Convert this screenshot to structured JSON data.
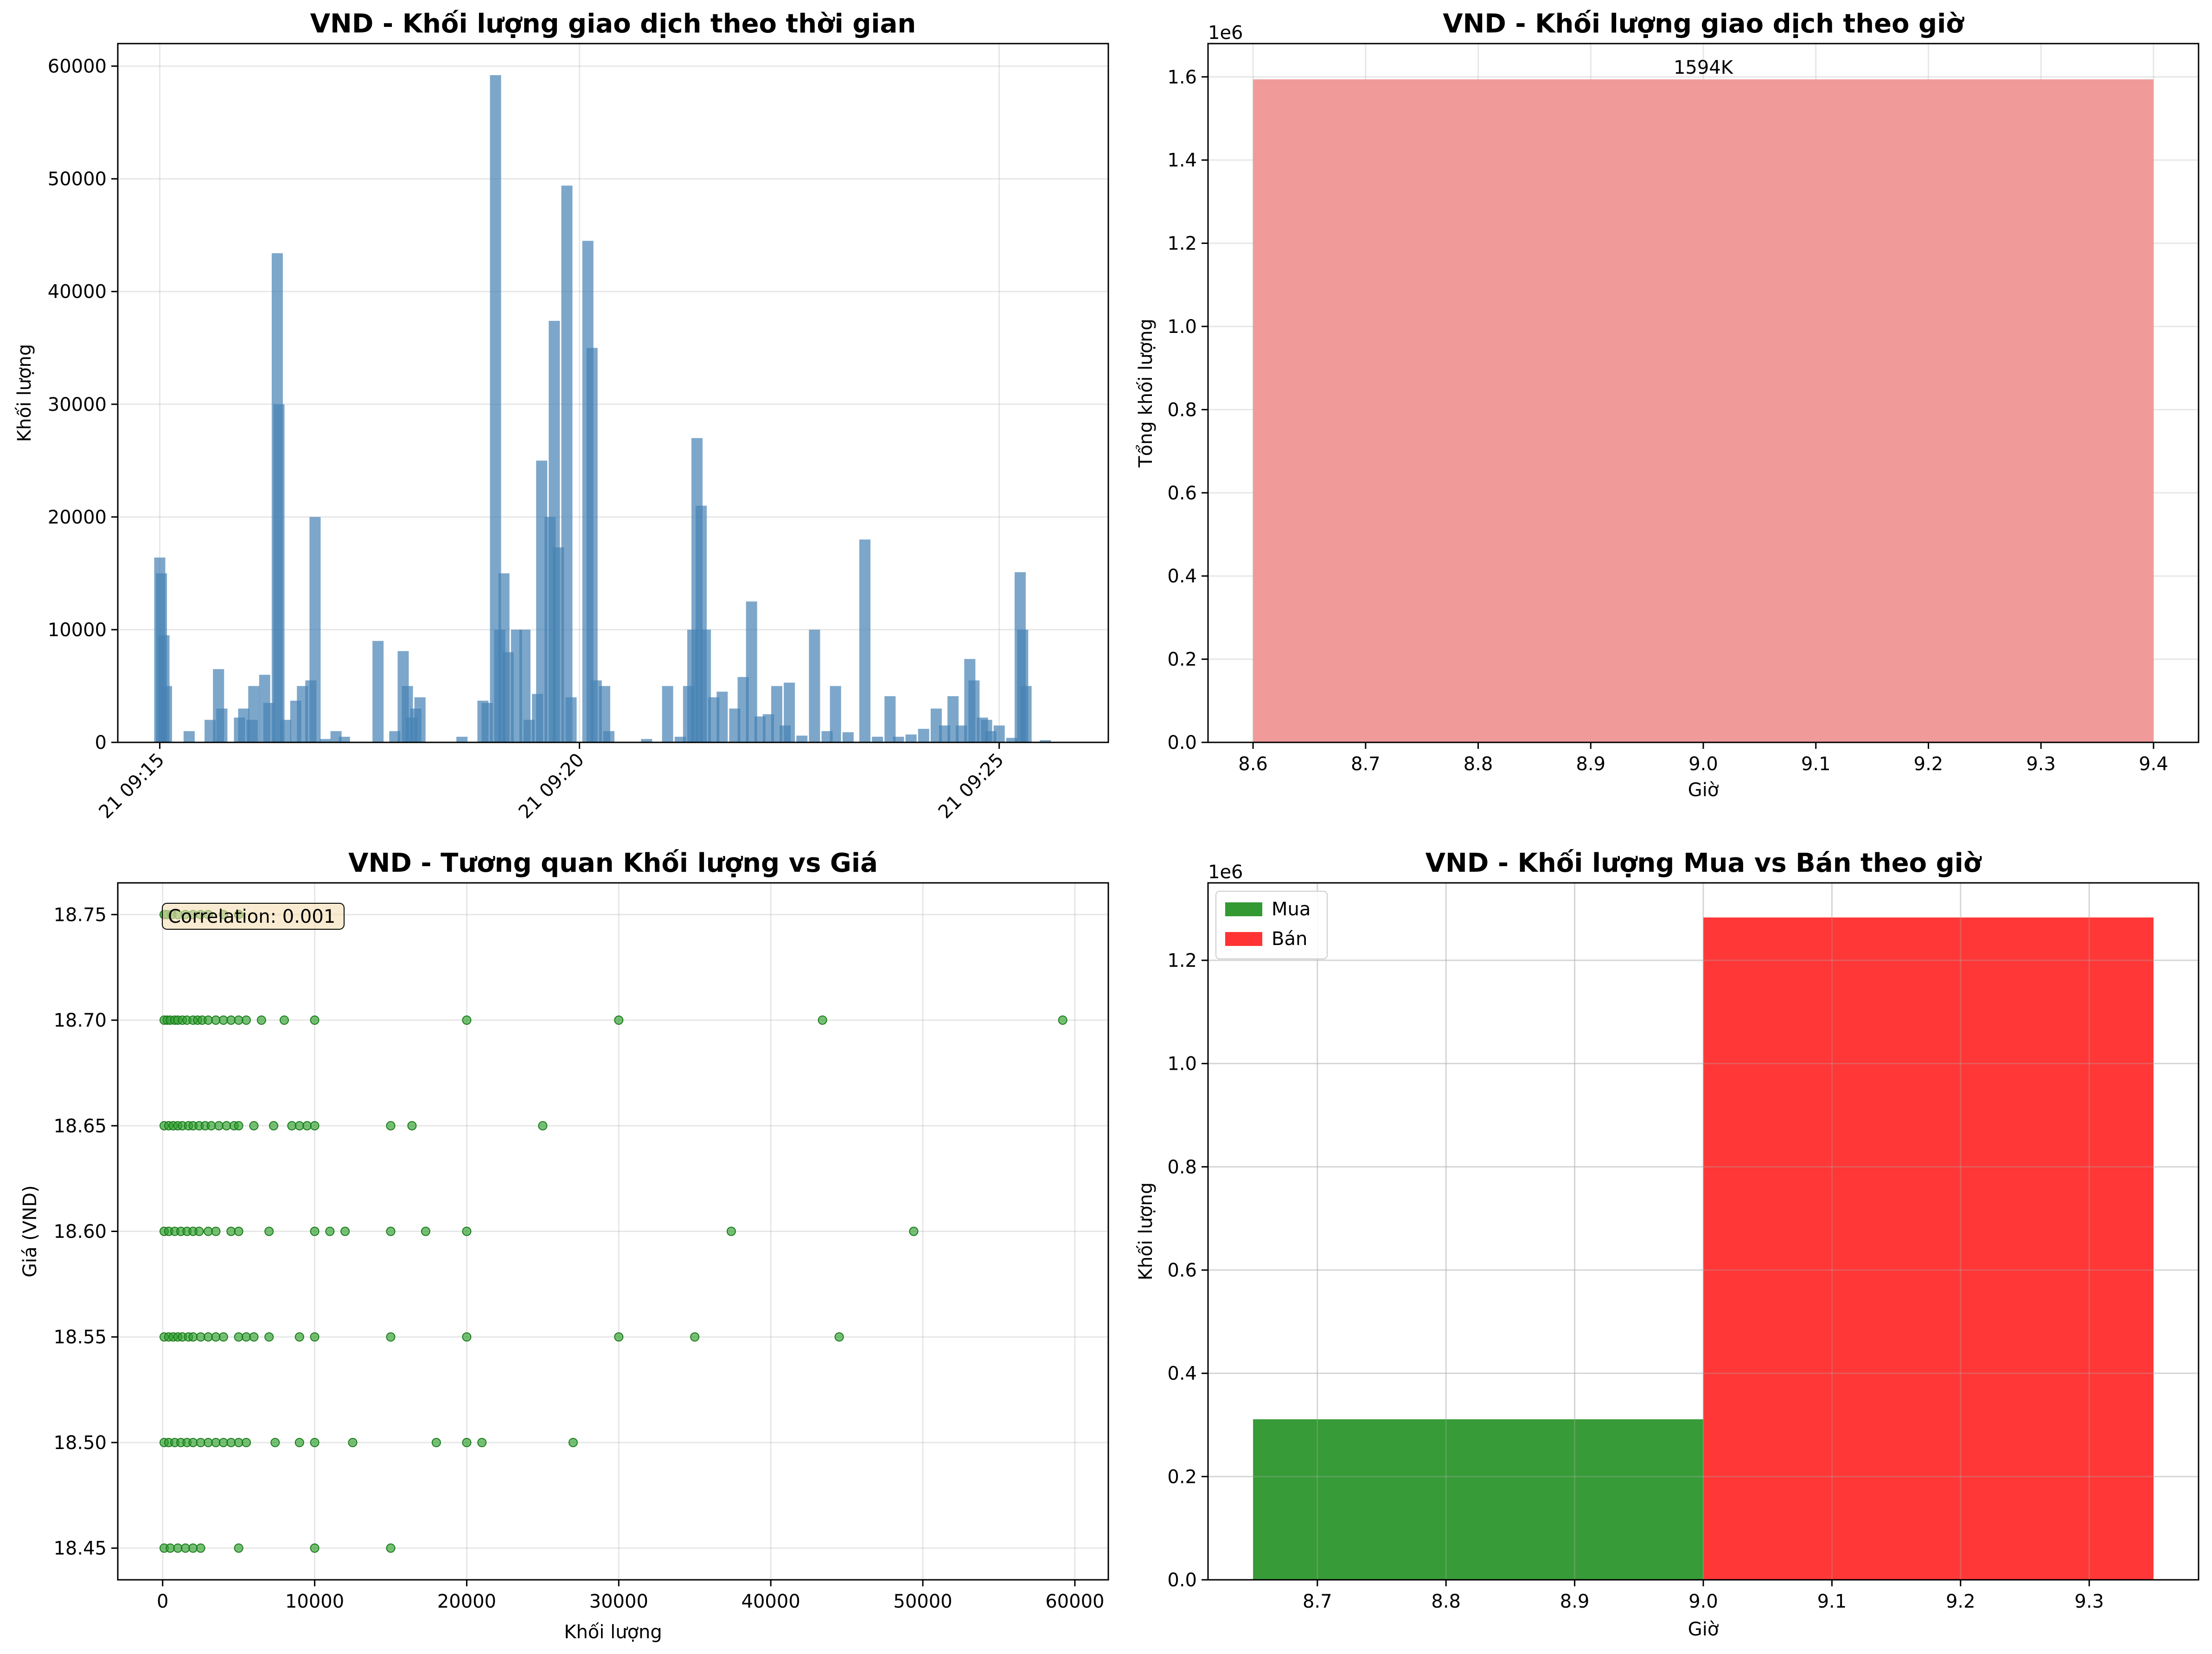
{
  "chart_data": [
    {
      "type": "bar",
      "title": "VND - Khối lượng giao dịch theo thời gian",
      "xlabel": "",
      "ylabel": "Khối lượng",
      "ylim": [
        0,
        62000
      ],
      "yticks": [
        0,
        10000,
        20000,
        30000,
        40000,
        50000,
        60000
      ],
      "xticks": [
        "21 09:15",
        "21 09:20",
        "21 09:25"
      ],
      "grid": true,
      "color": "#4682b4",
      "minute_axis": [
        0,
        11.3
      ],
      "values": [
        [
          0.0,
          16400
        ],
        [
          0.02,
          15000
        ],
        [
          0.05,
          9500
        ],
        [
          0.08,
          5000
        ],
        [
          0.35,
          1000
        ],
        [
          0.6,
          2000
        ],
        [
          0.7,
          6500
        ],
        [
          0.74,
          3000
        ],
        [
          0.95,
          2200
        ],
        [
          1.0,
          3000
        ],
        [
          1.1,
          2000
        ],
        [
          1.12,
          5000
        ],
        [
          1.25,
          6000
        ],
        [
          1.3,
          3500
        ],
        [
          1.4,
          43400
        ],
        [
          1.42,
          30000
        ],
        [
          1.5,
          2000
        ],
        [
          1.62,
          3700
        ],
        [
          1.7,
          5000
        ],
        [
          1.8,
          5500
        ],
        [
          1.85,
          20000
        ],
        [
          1.97,
          300
        ],
        [
          2.1,
          1000
        ],
        [
          2.2,
          500
        ],
        [
          2.6,
          9000
        ],
        [
          2.8,
          1000
        ],
        [
          2.9,
          8100
        ],
        [
          2.95,
          5000
        ],
        [
          3.0,
          2200
        ],
        [
          3.05,
          3000
        ],
        [
          3.1,
          4000
        ],
        [
          3.6,
          500
        ],
        [
          3.85,
          3700
        ],
        [
          3.9,
          3500
        ],
        [
          4.0,
          59200
        ],
        [
          4.05,
          10000
        ],
        [
          4.1,
          15000
        ],
        [
          4.15,
          8000
        ],
        [
          4.25,
          10000
        ],
        [
          4.35,
          10000
        ],
        [
          4.4,
          2000
        ],
        [
          4.5,
          4300
        ],
        [
          4.55,
          25000
        ],
        [
          4.65,
          20000
        ],
        [
          4.7,
          37400
        ],
        [
          4.75,
          17300
        ],
        [
          4.85,
          49400
        ],
        [
          4.9,
          4000
        ],
        [
          5.1,
          44500
        ],
        [
          5.15,
          35000
        ],
        [
          5.2,
          5500
        ],
        [
          5.3,
          5000
        ],
        [
          5.35,
          1000
        ],
        [
          5.8,
          300
        ],
        [
          6.05,
          5000
        ],
        [
          6.2,
          500
        ],
        [
          6.3,
          5000
        ],
        [
          6.35,
          10000
        ],
        [
          6.4,
          27000
        ],
        [
          6.45,
          21000
        ],
        [
          6.5,
          10000
        ],
        [
          6.6,
          4000
        ],
        [
          6.7,
          4500
        ],
        [
          6.85,
          3000
        ],
        [
          6.95,
          5800
        ],
        [
          7.05,
          12500
        ],
        [
          7.15,
          2300
        ],
        [
          7.25,
          2500
        ],
        [
          7.35,
          5000
        ],
        [
          7.45,
          1500
        ],
        [
          7.5,
          5300
        ],
        [
          7.65,
          600
        ],
        [
          7.8,
          10000
        ],
        [
          7.95,
          1000
        ],
        [
          8.05,
          5000
        ],
        [
          8.2,
          900
        ],
        [
          8.4,
          18000
        ],
        [
          8.55,
          500
        ],
        [
          8.7,
          4100
        ],
        [
          8.8,
          500
        ],
        [
          8.95,
          700
        ],
        [
          9.1,
          1200
        ],
        [
          9.25,
          3000
        ],
        [
          9.35,
          1500
        ],
        [
          9.45,
          4100
        ],
        [
          9.55,
          1500
        ],
        [
          9.65,
          7400
        ],
        [
          9.7,
          5500
        ],
        [
          9.8,
          2200
        ],
        [
          9.85,
          2000
        ],
        [
          9.9,
          1000
        ],
        [
          10.0,
          1500
        ],
        [
          10.15,
          400
        ],
        [
          10.25,
          15100
        ],
        [
          10.28,
          10000
        ],
        [
          10.32,
          5000
        ],
        [
          10.55,
          200
        ]
      ]
    },
    {
      "type": "bar",
      "title": "VND - Khối lượng giao dịch theo giờ",
      "xlabel": "Giờ",
      "ylabel": "Tổng khối lượng",
      "ylim": [
        0,
        1680000
      ],
      "xlim": [
        8.56,
        9.44
      ],
      "yticks": [
        0,
        0.2,
        0.4,
        0.6,
        0.8,
        1.0,
        1.2,
        1.4,
        1.6
      ],
      "xticks": [
        8.6,
        8.7,
        8.8,
        8.9,
        9.0,
        9.1,
        9.2,
        9.3,
        9.4
      ],
      "yscale_label": "1e6",
      "categories": [
        9
      ],
      "values": [
        1594000
      ],
      "bar_width": 0.8,
      "data_labels": [
        "1594K"
      ],
      "color": "#f09a9a",
      "grid": true
    },
    {
      "type": "scatter",
      "title": "VND - Tương quan Khối lượng vs Giá",
      "xlabel": "Khối lượng",
      "ylabel": "Giá (VND)",
      "xlim": [
        -2950,
        62200
      ],
      "ylim": [
        18.435,
        18.765
      ],
      "xticks": [
        0,
        10000,
        20000,
        30000,
        40000,
        50000,
        60000
      ],
      "yticks": [
        "18.45",
        "18.50",
        "18.55",
        "18.60",
        "18.65",
        "18.70",
        "18.75"
      ],
      "annotation": "Correlation: 0.001",
      "color": "#2ca02c",
      "grid": true,
      "points": [
        [
          100,
          18.75
        ],
        [
          300,
          18.75
        ],
        [
          600,
          18.75
        ],
        [
          1000,
          18.75
        ],
        [
          1500,
          18.75
        ],
        [
          2000,
          18.75
        ],
        [
          2500,
          18.75
        ],
        [
          3000,
          18.75
        ],
        [
          4000,
          18.75
        ],
        [
          5000,
          18.75
        ],
        [
          100,
          18.7
        ],
        [
          300,
          18.7
        ],
        [
          500,
          18.7
        ],
        [
          800,
          18.7
        ],
        [
          1000,
          18.7
        ],
        [
          1300,
          18.7
        ],
        [
          1600,
          18.7
        ],
        [
          2000,
          18.7
        ],
        [
          2300,
          18.7
        ],
        [
          2600,
          18.7
        ],
        [
          3000,
          18.7
        ],
        [
          3500,
          18.7
        ],
        [
          4000,
          18.7
        ],
        [
          4500,
          18.7
        ],
        [
          5000,
          18.7
        ],
        [
          5500,
          18.7
        ],
        [
          6500,
          18.7
        ],
        [
          8000,
          18.7
        ],
        [
          10000,
          18.7
        ],
        [
          20000,
          18.7
        ],
        [
          30000,
          18.7
        ],
        [
          43400,
          18.7
        ],
        [
          59200,
          18.7
        ],
        [
          100,
          18.65
        ],
        [
          400,
          18.65
        ],
        [
          700,
          18.65
        ],
        [
          1000,
          18.65
        ],
        [
          1300,
          18.65
        ],
        [
          1700,
          18.65
        ],
        [
          2000,
          18.65
        ],
        [
          2400,
          18.65
        ],
        [
          2800,
          18.65
        ],
        [
          3200,
          18.65
        ],
        [
          3700,
          18.65
        ],
        [
          4200,
          18.65
        ],
        [
          4700,
          18.65
        ],
        [
          5000,
          18.65
        ],
        [
          6000,
          18.65
        ],
        [
          7300,
          18.65
        ],
        [
          8500,
          18.65
        ],
        [
          9000,
          18.65
        ],
        [
          9500,
          18.65
        ],
        [
          10000,
          18.65
        ],
        [
          15000,
          18.65
        ],
        [
          16400,
          18.65
        ],
        [
          25000,
          18.65
        ],
        [
          100,
          18.6
        ],
        [
          400,
          18.6
        ],
        [
          800,
          18.6
        ],
        [
          1200,
          18.6
        ],
        [
          1600,
          18.6
        ],
        [
          2000,
          18.6
        ],
        [
          2400,
          18.6
        ],
        [
          3000,
          18.6
        ],
        [
          3500,
          18.6
        ],
        [
          4500,
          18.6
        ],
        [
          5000,
          18.6
        ],
        [
          7000,
          18.6
        ],
        [
          10000,
          18.6
        ],
        [
          11000,
          18.6
        ],
        [
          12000,
          18.6
        ],
        [
          15000,
          18.6
        ],
        [
          17300,
          18.6
        ],
        [
          20000,
          18.6
        ],
        [
          37400,
          18.6
        ],
        [
          49400,
          18.6
        ],
        [
          100,
          18.55
        ],
        [
          400,
          18.55
        ],
        [
          700,
          18.55
        ],
        [
          1000,
          18.55
        ],
        [
          1300,
          18.55
        ],
        [
          1700,
          18.55
        ],
        [
          2000,
          18.55
        ],
        [
          2500,
          18.55
        ],
        [
          3000,
          18.55
        ],
        [
          3500,
          18.55
        ],
        [
          4000,
          18.55
        ],
        [
          5000,
          18.55
        ],
        [
          5500,
          18.55
        ],
        [
          6000,
          18.55
        ],
        [
          7000,
          18.55
        ],
        [
          9000,
          18.55
        ],
        [
          10000,
          18.55
        ],
        [
          15000,
          18.55
        ],
        [
          20000,
          18.55
        ],
        [
          30000,
          18.55
        ],
        [
          35000,
          18.55
        ],
        [
          44500,
          18.55
        ],
        [
          100,
          18.5
        ],
        [
          400,
          18.5
        ],
        [
          800,
          18.5
        ],
        [
          1200,
          18.5
        ],
        [
          1600,
          18.5
        ],
        [
          2000,
          18.5
        ],
        [
          2500,
          18.5
        ],
        [
          3000,
          18.5
        ],
        [
          3500,
          18.5
        ],
        [
          4000,
          18.5
        ],
        [
          4500,
          18.5
        ],
        [
          5000,
          18.5
        ],
        [
          5500,
          18.5
        ],
        [
          7400,
          18.5
        ],
        [
          9000,
          18.5
        ],
        [
          10000,
          18.5
        ],
        [
          12500,
          18.5
        ],
        [
          18000,
          18.5
        ],
        [
          20000,
          18.5
        ],
        [
          21000,
          18.5
        ],
        [
          27000,
          18.5
        ],
        [
          100,
          18.45
        ],
        [
          500,
          18.45
        ],
        [
          1000,
          18.45
        ],
        [
          1500,
          18.45
        ],
        [
          2000,
          18.45
        ],
        [
          2500,
          18.45
        ],
        [
          5000,
          18.45
        ],
        [
          10000,
          18.45
        ],
        [
          15000,
          18.45
        ]
      ]
    },
    {
      "type": "bar",
      "title": "VND - Khối lượng Mua vs Bán theo giờ",
      "xlabel": "Giờ",
      "ylabel": "Khối lượng",
      "xlim": [
        8.615,
        9.385
      ],
      "ylim": [
        0,
        1350000
      ],
      "xticks": [
        "8.7",
        "8.8",
        "8.9",
        "9.0",
        "9.1",
        "9.2",
        "9.3"
      ],
      "yticks": [
        0,
        0.2,
        0.4,
        0.6,
        0.8,
        1.0,
        1.2
      ],
      "yscale_label": "1e6",
      "categories": [
        9
      ],
      "bar_width": 0.35,
      "series": [
        {
          "name": "Mua",
          "values": [
            311000
          ],
          "color": "#339933",
          "offset": -0.175
        },
        {
          "name": "Bán",
          "values": [
            1283000
          ],
          "color": "#ff3333",
          "offset": 0.175
        }
      ],
      "legend": "top-left",
      "grid": true
    }
  ]
}
